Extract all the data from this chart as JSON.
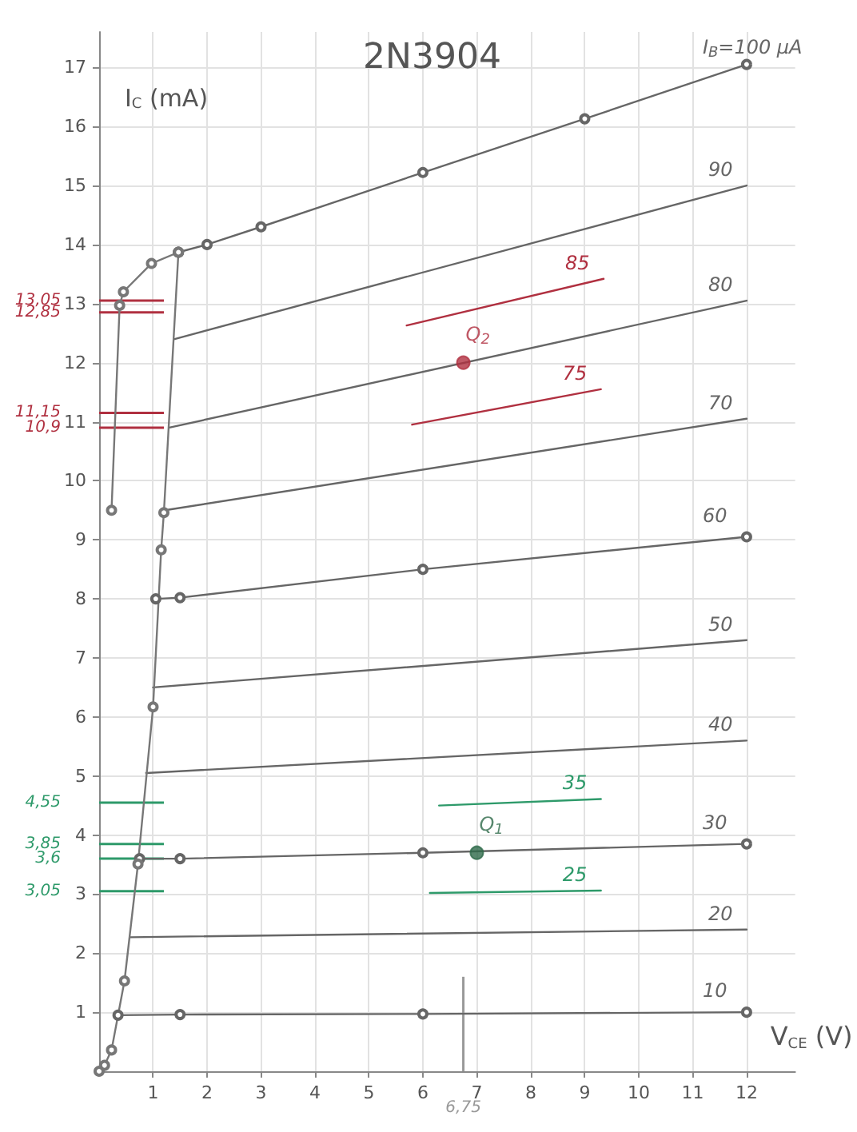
{
  "chart_data": {
    "type": "line",
    "title": "2N3904",
    "xlabel": "V$_{CE}$ (V)",
    "ylabel": "I$_{C}$ (mA)",
    "xlim": [
      0,
      12.9
    ],
    "ylim": [
      0,
      17.6
    ],
    "xticks": [
      1,
      2,
      3,
      4,
      5,
      6,
      7,
      8,
      9,
      10,
      11,
      12
    ],
    "yticks": [
      1,
      2,
      3,
      4,
      5,
      6,
      7,
      8,
      9,
      10,
      11,
      12,
      13,
      14,
      15,
      16,
      17
    ],
    "grid": true,
    "legend": false,
    "line_style": "solid",
    "series": [
      {
        "name": "I$_{B}$=100 µA",
        "color": "#666666",
        "marker": "circle",
        "x": [
          1.47,
          2,
          3,
          6,
          9,
          12
        ],
        "values": [
          13.87,
          14.0,
          14.3,
          15.22,
          16.13,
          17.05
        ]
      },
      {
        "name": "90",
        "color": "#666666",
        "marker": "none",
        "x": [
          1.4,
          12
        ],
        "values": [
          12.4,
          15.0
        ]
      },
      {
        "name": "80",
        "color": "#666666",
        "marker": "none",
        "x": [
          1.3,
          12
        ],
        "values": [
          10.9,
          13.05
        ]
      },
      {
        "name": "70",
        "color": "#666666",
        "marker": "none",
        "x": [
          1.22,
          12
        ],
        "values": [
          9.5,
          11.05
        ]
      },
      {
        "name": "60",
        "color": "#666666",
        "marker": "circle",
        "x": [
          1.05,
          1.5,
          6,
          12
        ],
        "values": [
          8.0,
          8.02,
          8.5,
          9.05
        ]
      },
      {
        "name": "50",
        "color": "#666666",
        "marker": "none",
        "x": [
          1.0,
          12
        ],
        "values": [
          6.5,
          7.3
        ]
      },
      {
        "name": "40",
        "color": "#666666",
        "marker": "none",
        "x": [
          0.87,
          12
        ],
        "values": [
          5.05,
          5.6
        ]
      },
      {
        "name": "30",
        "color": "#666666",
        "marker": "circle",
        "x": [
          0.75,
          1.5,
          6,
          12
        ],
        "values": [
          3.6,
          3.6,
          3.7,
          3.85
        ]
      },
      {
        "name": "20",
        "color": "#666666",
        "marker": "none",
        "x": [
          0.58,
          12
        ],
        "values": [
          2.27,
          2.4
        ]
      },
      {
        "name": "10",
        "color": "#666666",
        "marker": "circle",
        "x": [
          0.35,
          1.5,
          6,
          12
        ],
        "values": [
          0.95,
          0.96,
          0.97,
          1.0
        ]
      },
      {
        "color": "#777777",
        "marker": "circle",
        "x": [
          0,
          0.1,
          0.23,
          0.47,
          0.72,
          1.0,
          1.15,
          1.2,
          1.47
        ],
        "values": [
          0,
          0.1,
          0.36,
          1.53,
          3.51,
          6.17,
          8.83,
          9.46,
          13.87
        ]
      },
      {
        "color": "#777777",
        "marker": "circle",
        "x": [
          0.23,
          0.38,
          0.45,
          0.97,
          1.47
        ],
        "values": [
          9.5,
          12.97,
          13.2,
          13.68,
          13.87
        ]
      },
      {
        "name": "85",
        "color": "#b03040",
        "marker": "none",
        "x": [
          5.7,
          9.35
        ],
        "values": [
          12.63,
          13.42
        ]
      },
      {
        "name": "75",
        "color": "#b03040",
        "marker": "none",
        "x": [
          5.8,
          9.3
        ],
        "values": [
          10.95,
          11.55
        ]
      },
      {
        "name": "35",
        "color": "#2e9a6a",
        "marker": "none",
        "x": [
          6.3,
          9.3
        ],
        "values": [
          4.5,
          4.61
        ]
      },
      {
        "name": "25",
        "color": "#2e9a6a",
        "marker": "none",
        "x": [
          6.13,
          9.3
        ],
        "values": [
          3.02,
          3.06
        ]
      },
      {
        "name": "Q$_{2}$",
        "type": "scatter",
        "color": "#b03040",
        "marker": "circle",
        "x": [
          6.75
        ],
        "values": [
          12.0
        ]
      },
      {
        "name": "Q$_{1}$",
        "type": "scatter",
        "color": "#2e6a4a",
        "marker": "circle",
        "x": [
          7
        ],
        "values": [
          3.7
        ]
      }
    ],
    "ref_lines": [
      {
        "axis": "y",
        "value": 13.05,
        "label": "13,05",
        "color": "#b03040"
      },
      {
        "axis": "y",
        "value": 12.85,
        "label": "12,85",
        "color": "#b03040"
      },
      {
        "axis": "y",
        "value": 11.15,
        "label": "11,15",
        "color": "#b03040"
      },
      {
        "axis": "y",
        "value": 10.9,
        "label": "10,9",
        "color": "#b03040"
      },
      {
        "axis": "y",
        "value": 4.55,
        "label": "4,55",
        "color": "#2e9a6a"
      },
      {
        "axis": "y",
        "value": 3.85,
        "label": "3,85",
        "color": "#2e9a6a"
      },
      {
        "axis": "y",
        "value": 3.6,
        "label": "3,6",
        "color": "#2e9a6a"
      },
      {
        "axis": "y",
        "value": 3.05,
        "label": "3,05",
        "color": "#2e9a6a"
      },
      {
        "axis": "x",
        "value": 6.75,
        "label": "6,75",
        "color": "#999999"
      }
    ]
  }
}
